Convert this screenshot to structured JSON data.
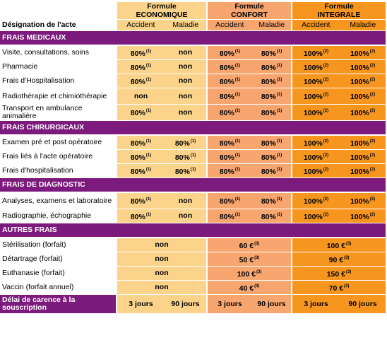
{
  "stray_mark": "ˆ",
  "formulas": [
    {
      "line1": "Formule",
      "line2": "ECONOMIQUE"
    },
    {
      "line1": "Formule",
      "line2": "CONFORT"
    },
    {
      "line1": "Formule",
      "line2": "INTEGRALE"
    }
  ],
  "header": {
    "designation": "Désignation de l'acte",
    "accident": "Accident",
    "maladie": "Maladie"
  },
  "sections": {
    "medicaux": "FRAIS MEDICAUX",
    "chirurgicaux": "FRAIS CHIRURGICAUX",
    "diagnostic": "FRAIS DE DIAGNOSTIC",
    "autres": "AUTRES FRAIS"
  },
  "medicaux": [
    {
      "label": "Visite, consultations, soins",
      "v": [
        "80%",
        "non",
        "80%",
        "80%",
        "100%",
        "100%"
      ],
      "n": [
        "(1)",
        "",
        "(1)",
        "(1)",
        "(2)",
        "(2)"
      ]
    },
    {
      "label": "Pharmacie",
      "v": [
        "80%",
        "non",
        "80%",
        "80%",
        "100%",
        "100%"
      ],
      "n": [
        "(1)",
        "",
        "(1)",
        "(1)",
        "(2)",
        "(2)"
      ]
    },
    {
      "label": "Frais d'Hospitalisation",
      "v": [
        "80%",
        "non",
        "80%",
        "80%",
        "100%",
        "100%"
      ],
      "n": [
        "(1)",
        "",
        "(1)",
        "(1)",
        "(2)",
        "(2)"
      ]
    },
    {
      "label": "Radiothérapie et chimiothérapie",
      "v": [
        "non",
        "non",
        "80%",
        "80%",
        "100%",
        "100%"
      ],
      "n": [
        "",
        "",
        "(1)",
        "(1)",
        "(2)",
        "(2)"
      ]
    },
    {
      "label": "Transport en ambulance animalière",
      "v": [
        "80%",
        "non",
        "80%",
        "80%",
        "100%",
        "100%"
      ],
      "n": [
        "(1)",
        "",
        "(1)",
        "(1)",
        "(2)",
        "(2)"
      ]
    }
  ],
  "chirurgicaux": [
    {
      "label": "Examen pré et post opératoire",
      "v": [
        "80%",
        "80%",
        "80%",
        "80%",
        "100%",
        "100%"
      ],
      "n": [
        "(1)",
        "(1)",
        "(1)",
        "(1)",
        "(2)",
        "(2)"
      ]
    },
    {
      "label": "Frais liés à l'acte opératoire",
      "v": [
        "80%",
        "80%",
        "80%",
        "80%",
        "100%",
        "100%"
      ],
      "n": [
        "(1)",
        "(1)",
        "(1)",
        "(1)",
        "(2)",
        "(2)"
      ]
    },
    {
      "label": "Frais d'hospitalisation",
      "v": [
        "80%",
        "80%",
        "80%",
        "80%",
        "100%",
        "100%"
      ],
      "n": [
        "(1)",
        "(1)",
        "(1)",
        "(1)",
        "(2)",
        "(2)"
      ]
    }
  ],
  "diagnostic": [
    {
      "label": "Analyses, examens et laboratoire",
      "v": [
        "80%",
        "non",
        "80%",
        "80%",
        "100%",
        "100%"
      ],
      "n": [
        "(1)",
        "",
        "(1)",
        "(1)",
        "(2)",
        "(2)"
      ]
    },
    {
      "label": "Radiographie, échographie",
      "v": [
        "80%",
        "non",
        "80%",
        "80%",
        "100%",
        "100%"
      ],
      "n": [
        "(1)",
        "",
        "(1)",
        "(1)",
        "(2)",
        "(2)"
      ]
    }
  ],
  "autres": [
    {
      "label": "Stérilisation (forfait)",
      "v": [
        "non",
        "60 €",
        "100 €"
      ],
      "n": [
        "",
        "(3)",
        "(3)"
      ]
    },
    {
      "label": "Détartrage (forfait)",
      "v": [
        "non",
        "50 €",
        "90 €"
      ],
      "n": [
        "",
        "(3)",
        "(3)"
      ]
    },
    {
      "label": "Euthanasie (forfait)",
      "v": [
        "non",
        "100 €",
        "150 €"
      ],
      "n": [
        "",
        "(3)",
        "(3)"
      ]
    },
    {
      "label": "Vaccin (forfait annuel)",
      "v": [
        "non",
        "40 €",
        "70 €"
      ],
      "n": [
        "",
        "(3)",
        "(3)"
      ]
    }
  ],
  "carence": {
    "label": "Délai de carence à la souscription",
    "values": [
      "3 jours",
      "90 jours",
      "3 jours",
      "90 jours",
      "3 jours",
      "90 jours"
    ]
  },
  "colors": {
    "economique": "#fbd38a",
    "confort": "#f8a670",
    "integrale": "#f7961f",
    "section": "#7d1a7d"
  }
}
